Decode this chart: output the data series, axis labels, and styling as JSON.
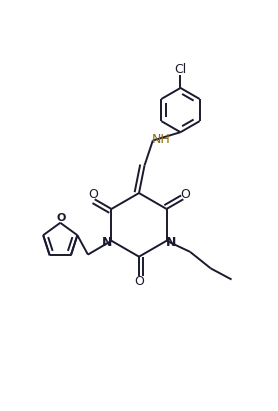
{
  "background_color": "#ffffff",
  "line_color": "#1a1a2e",
  "nh_color": "#8B6914",
  "figsize": [
    2.78,
    4.11
  ],
  "dpi": 100,
  "xlim": [
    0.0,
    1.0
  ],
  "ylim": [
    0.0,
    1.0
  ]
}
